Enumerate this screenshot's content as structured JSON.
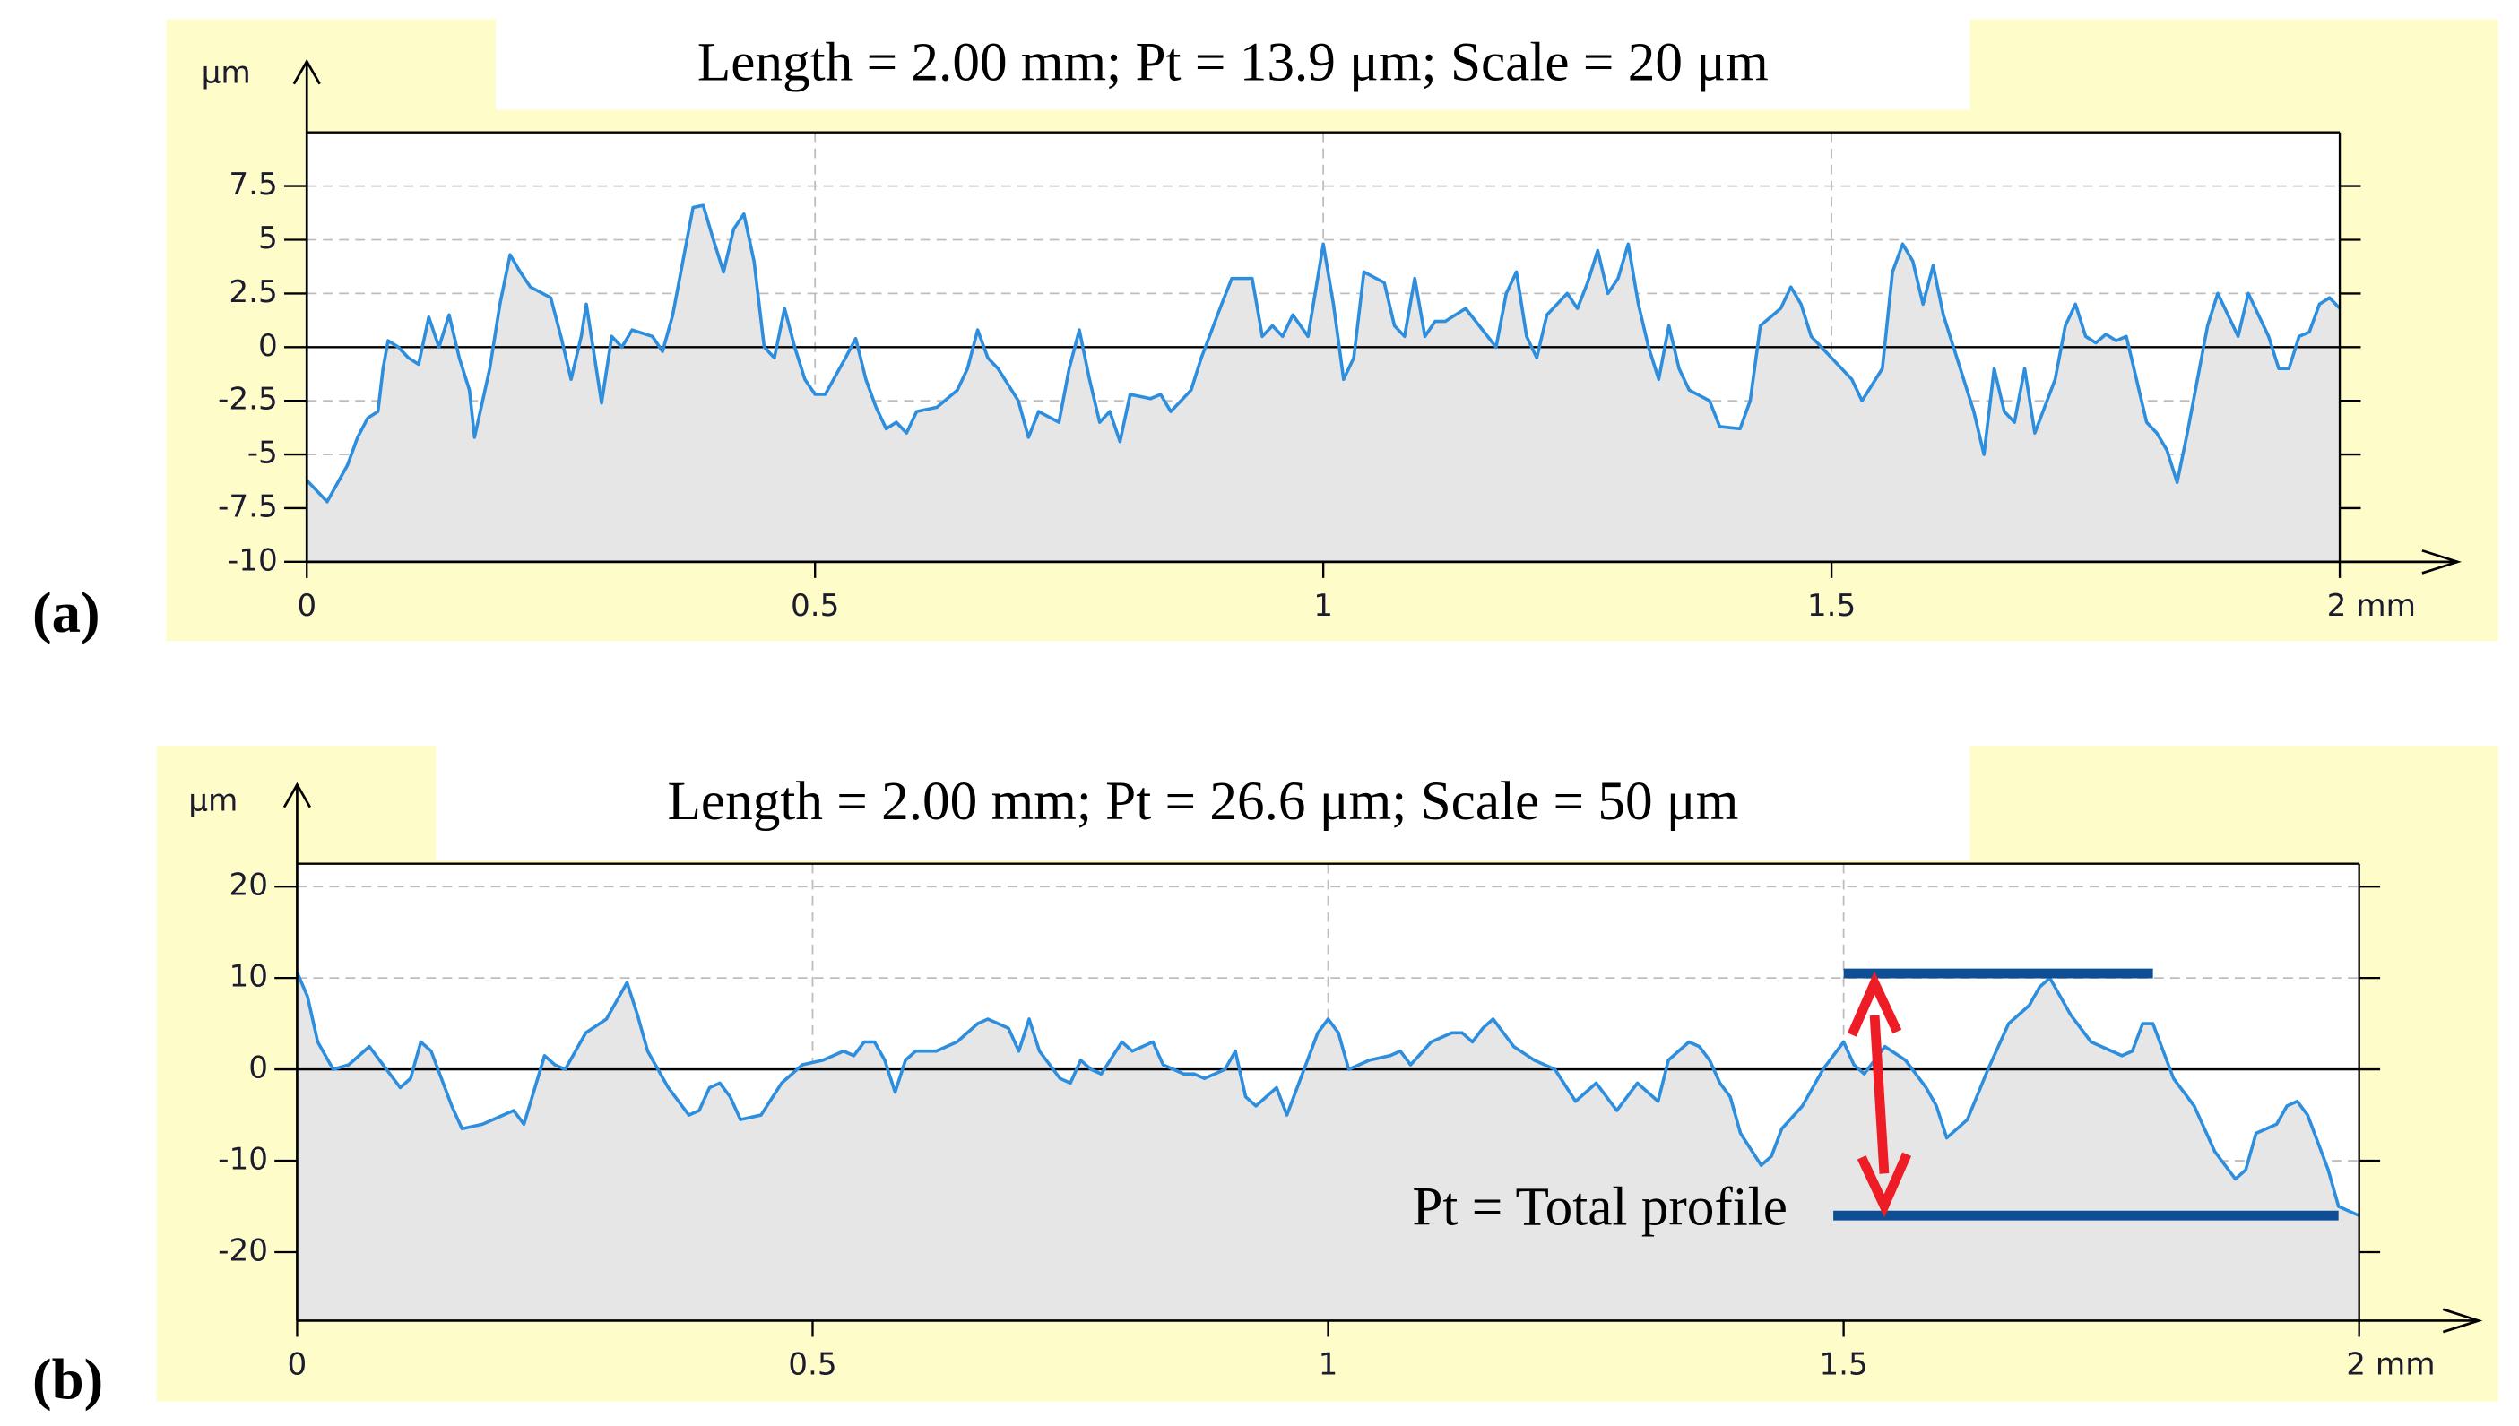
{
  "chart_data": [
    {
      "type": "area",
      "panel_label": "(a)",
      "title": "Length = 2.00 mm; Pt = 13.9 μm; Scale = 20 μm",
      "y_label": "μm",
      "color": "#2e8ede",
      "fill": "#e6e6e6",
      "grid": true,
      "xlim": [
        0,
        2
      ],
      "ylim": [
        -10,
        10
      ],
      "xticks": [
        0,
        0.5,
        1,
        1.5,
        {
          "value": 2,
          "label": "2 mm"
        }
      ],
      "yticks": [
        -10,
        -7.5,
        -5,
        -2.5,
        0,
        2.5,
        5,
        7.5
      ],
      "x": [
        0,
        0.02,
        0.04,
        0.05,
        0.06,
        0.07,
        0.075,
        0.08,
        0.09,
        0.1,
        0.11,
        0.12,
        0.13,
        0.14,
        0.15,
        0.16,
        0.165,
        0.18,
        0.19,
        0.2,
        0.21,
        0.22,
        0.24,
        0.25,
        0.26,
        0.27,
        0.275,
        0.29,
        0.3,
        0.31,
        0.32,
        0.34,
        0.35,
        0.36,
        0.37,
        0.38,
        0.39,
        0.4,
        0.41,
        0.42,
        0.43,
        0.44,
        0.45,
        0.46,
        0.47,
        0.48,
        0.49,
        0.5,
        0.51,
        0.53,
        0.54,
        0.55,
        0.56,
        0.57,
        0.58,
        0.59,
        0.6,
        0.62,
        0.64,
        0.65,
        0.66,
        0.67,
        0.68,
        0.7,
        0.71,
        0.72,
        0.74,
        0.75,
        0.76,
        0.77,
        0.78,
        0.79,
        0.8,
        0.81,
        0.83,
        0.84,
        0.85,
        0.87,
        0.88,
        0.9,
        0.91,
        0.93,
        0.94,
        0.95,
        0.96,
        0.97,
        0.985,
        1.0,
        1.01,
        1.02,
        1.03,
        1.04,
        1.06,
        1.07,
        1.08,
        1.09,
        1.1,
        1.11,
        1.12,
        1.14,
        1.15,
        1.17,
        1.18,
        1.19,
        1.2,
        1.21,
        1.22,
        1.24,
        1.25,
        1.26,
        1.27,
        1.28,
        1.29,
        1.3,
        1.31,
        1.32,
        1.33,
        1.34,
        1.35,
        1.36,
        1.38,
        1.39,
        1.41,
        1.42,
        1.43,
        1.45,
        1.46,
        1.47,
        1.48,
        1.5,
        1.52,
        1.53,
        1.55,
        1.56,
        1.57,
        1.58,
        1.59,
        1.6,
        1.61,
        1.63,
        1.64,
        1.65,
        1.66,
        1.67,
        1.68,
        1.69,
        1.7,
        1.72,
        1.73,
        1.74,
        1.75,
        1.76,
        1.77,
        1.78,
        1.79,
        1.8,
        1.81,
        1.82,
        1.83,
        1.84,
        1.85,
        1.86,
        1.87,
        1.88,
        1.89,
        1.9,
        1.91,
        1.92,
        1.93,
        1.94,
        1.95,
        1.96,
        1.97,
        1.98,
        1.99,
        2.0
      ],
      "values": [
        -6.2,
        -7.2,
        -5.5,
        -4.2,
        -3.3,
        -3,
        -1,
        0.3,
        0,
        -0.5,
        -0.8,
        1.4,
        0,
        1.5,
        -0.5,
        -2,
        -4.2,
        -1,
        2,
        4.3,
        3.5,
        2.8,
        2.3,
        0.5,
        -1.5,
        0.5,
        2,
        -2.6,
        0.5,
        0,
        0.8,
        0.5,
        -0.2,
        1.5,
        4,
        6.5,
        6.6,
        5,
        3.5,
        5.5,
        6.2,
        4,
        0,
        -0.5,
        1.8,
        0,
        -1.5,
        -2.2,
        -2.2,
        -0.5,
        0.4,
        -1.5,
        -2.8,
        -3.8,
        -3.5,
        -4,
        -3,
        -2.8,
        -2,
        -1,
        0.8,
        -0.5,
        -1,
        -2.5,
        -4.2,
        -3,
        -3.5,
        -1,
        0.8,
        -1.5,
        -3.5,
        -3,
        -4.4,
        -2.2,
        -2.4,
        -2.2,
        -3,
        -2,
        -0.5,
        2,
        3.2,
        3.2,
        0.5,
        1,
        0.5,
        1.5,
        0.5,
        4.8,
        2,
        -1.5,
        -0.5,
        3.5,
        3,
        1,
        0.5,
        3.2,
        0.5,
        1.2,
        1.2,
        1.8,
        1.2,
        0,
        2.5,
        3.5,
        0.5,
        -0.5,
        1.5,
        2.5,
        1.8,
        3,
        4.5,
        2.5,
        3.2,
        4.8,
        2,
        0,
        -1.5,
        1,
        -1,
        -2,
        -2.5,
        -3.7,
        -3.8,
        -2.5,
        1,
        1.8,
        2.8,
        2,
        0.5,
        -0.5,
        -1.5,
        -2.5,
        -1,
        3.5,
        4.8,
        4,
        2,
        3.8,
        1.5,
        -1.5,
        -3,
        -5,
        -1,
        -3,
        -3.5,
        -1,
        -4,
        -1.5,
        1,
        2,
        0.5,
        0.2,
        0.6,
        0.3,
        0.5,
        -1.5,
        -3.5,
        -4,
        -4.8,
        -6.3,
        -4,
        -1.5,
        1,
        2.5,
        1.5,
        0.5,
        2.5,
        1.5,
        0.5,
        -1,
        -1,
        0.5,
        0.7,
        2,
        2.3,
        1.8
      ]
    },
    {
      "type": "area",
      "panel_label": "(b)",
      "title": "Length = 2.00 mm; Pt = 26.6 μm; Scale = 50 μm",
      "y_label": "μm",
      "color": "#2e8ede",
      "fill": "#e6e6e6",
      "grid": true,
      "xlim": [
        0,
        2
      ],
      "ylim": [
        -27.5,
        22.5
      ],
      "xticks": [
        0,
        0.5,
        1,
        1.5,
        {
          "value": 2,
          "label": "2 mm"
        }
      ],
      "yticks": [
        -20,
        -10,
        0,
        10,
        20
      ],
      "annotation": "Pt = Total profile",
      "pt_range": [
        -16,
        10.5
      ],
      "pt_line_color": "#0d4e94",
      "pt_arrow_color": "#ee1c25",
      "x": [
        0,
        0.01,
        0.02,
        0.035,
        0.05,
        0.07,
        0.08,
        0.1,
        0.11,
        0.12,
        0.13,
        0.15,
        0.16,
        0.18,
        0.2,
        0.21,
        0.22,
        0.24,
        0.25,
        0.26,
        0.28,
        0.3,
        0.32,
        0.33,
        0.34,
        0.36,
        0.38,
        0.39,
        0.4,
        0.41,
        0.42,
        0.43,
        0.45,
        0.47,
        0.49,
        0.51,
        0.53,
        0.54,
        0.55,
        0.56,
        0.57,
        0.58,
        0.59,
        0.6,
        0.62,
        0.64,
        0.66,
        0.67,
        0.69,
        0.7,
        0.71,
        0.72,
        0.74,
        0.75,
        0.76,
        0.77,
        0.78,
        0.8,
        0.81,
        0.82,
        0.83,
        0.84,
        0.86,
        0.87,
        0.88,
        0.9,
        0.91,
        0.92,
        0.93,
        0.95,
        0.96,
        0.98,
        0.99,
        1.0,
        1.01,
        1.02,
        1.04,
        1.06,
        1.07,
        1.08,
        1.1,
        1.12,
        1.13,
        1.14,
        1.15,
        1.16,
        1.17,
        1.18,
        1.2,
        1.22,
        1.24,
        1.26,
        1.27,
        1.28,
        1.3,
        1.32,
        1.33,
        1.35,
        1.36,
        1.37,
        1.38,
        1.39,
        1.4,
        1.42,
        1.43,
        1.44,
        1.46,
        1.48,
        1.5,
        1.51,
        1.52,
        1.54,
        1.56,
        1.58,
        1.59,
        1.6,
        1.62,
        1.64,
        1.66,
        1.68,
        1.69,
        1.7,
        1.71,
        1.72,
        1.74,
        1.76,
        1.77,
        1.78,
        1.79,
        1.8,
        1.81,
        1.82,
        1.84,
        1.86,
        1.88,
        1.89,
        1.9,
        1.92,
        1.93,
        1.94,
        1.95,
        1.97,
        1.98,
        2.0
      ],
      "values": [
        10.6,
        8,
        3,
        0,
        0.5,
        2.5,
        1,
        -2,
        -1,
        3,
        2,
        -4,
        -6.5,
        -6,
        -5,
        -4.5,
        -6,
        1.5,
        0.5,
        0,
        4,
        5.5,
        9.5,
        6,
        2,
        -2,
        -5,
        -4.5,
        -2,
        -1.5,
        -3,
        -5.5,
        -5,
        -1.5,
        0.5,
        1,
        2,
        1.5,
        3,
        3,
        1,
        -2.5,
        1,
        2,
        2,
        3,
        5,
        5.5,
        4.5,
        2,
        5.5,
        2,
        -1,
        -1.5,
        1,
        0,
        -0.5,
        3,
        2,
        2.5,
        3,
        0.5,
        -0.5,
        -0.5,
        -1,
        0,
        2,
        -3,
        -4,
        -2,
        -5,
        1,
        4,
        5.5,
        4,
        0,
        1,
        1.5,
        2,
        0.5,
        3,
        4,
        4,
        3,
        4.5,
        5.5,
        4,
        2.5,
        1,
        0,
        -3.5,
        -1.5,
        -3,
        -4.5,
        -1.5,
        -3.5,
        1,
        3,
        2.5,
        1,
        -1.5,
        -3,
        -7,
        -10.5,
        -9.5,
        -6.5,
        -4,
        0,
        3,
        0.5,
        -0.5,
        2.5,
        1,
        -2,
        -4,
        -7.5,
        -5.5,
        0,
        5,
        7,
        9,
        10,
        8,
        6,
        3,
        2,
        1.5,
        2,
        5,
        5,
        2,
        -1,
        -4,
        -9,
        -12,
        -11,
        -7,
        -6,
        -4,
        -3.5,
        -5,
        -11,
        -15,
        -16
      ]
    }
  ]
}
